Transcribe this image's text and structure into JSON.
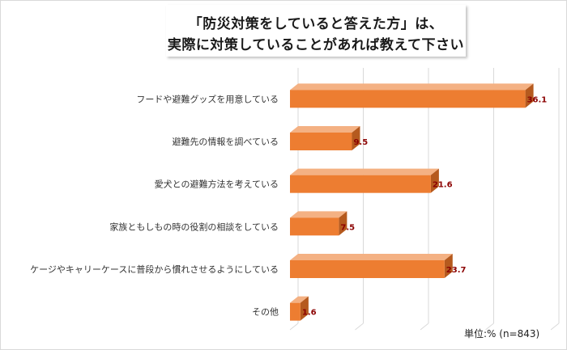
{
  "chart_data": {
    "type": "bar",
    "orientation": "horizontal",
    "title_lines": [
      "「防災対策をしていると答えた方」は、",
      "実際に対策していることがあれば教えて下さい"
    ],
    "categories": [
      "フードや避難グッズを用意している",
      "避難先の情報を調べている",
      "愛犬との避難方法を考えている",
      "家族ともしもの時の役割の相談をしている",
      "ケージやキャリーケースに普段から慣れさせるようにしている",
      "その他"
    ],
    "values": [
      36.1,
      9.5,
      21.6,
      7.5,
      23.7,
      1.6
    ],
    "value_labels": [
      "36.1",
      "9.5",
      "21.6",
      "7.5",
      "23.7",
      "1.6"
    ],
    "xlim": [
      0,
      40
    ],
    "grid": true,
    "style": "3d",
    "note": "単位:% (n=843)",
    "colors": {
      "bar_front": "#ED7D31",
      "bar_top": "#F4B183",
      "bar_side": "#B55A1E",
      "value_label": "#8B0000",
      "grid": "#d9d9d9"
    }
  }
}
